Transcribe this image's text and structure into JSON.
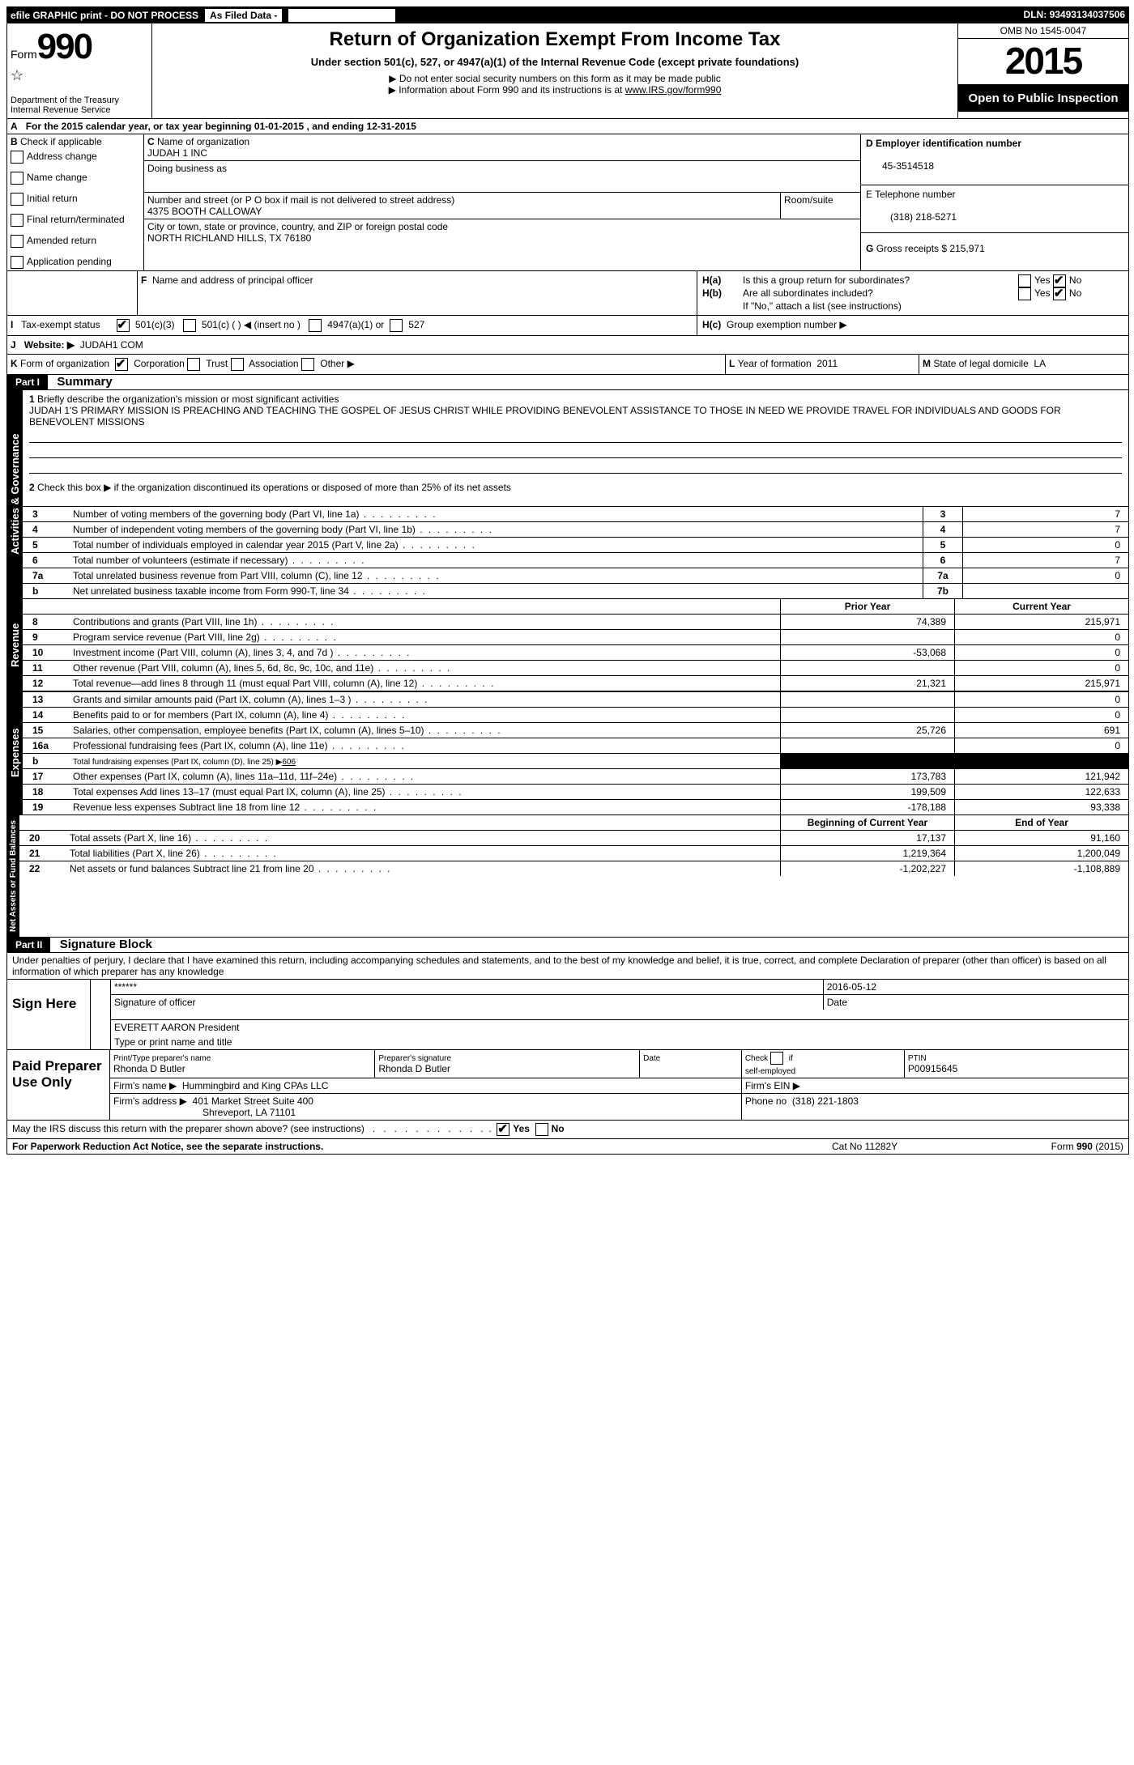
{
  "topbar": {
    "efile": "efile GRAPHIC print - DO NOT PROCESS",
    "asfiled": "As Filed Data -",
    "dln_label": "DLN:",
    "dln": "93493134037506"
  },
  "header": {
    "form_label": "Form",
    "form_no": "990",
    "dept": "Department of the Treasury",
    "irs": "Internal Revenue Service",
    "title": "Return of Organization Exempt From Income Tax",
    "subtitle": "Under section 501(c), 527, or 4947(a)(1) of the Internal Revenue Code (except private foundations)",
    "note1": "▶ Do not enter social security numbers on this form as it may be made public",
    "note2_pre": "▶ Information about Form 990 and its instructions is at ",
    "note2_link": "www.IRS.gov/form990",
    "omb": "OMB No 1545-0047",
    "year": "2015",
    "open": "Open to Public Inspection"
  },
  "line_a": {
    "text_pre": "For the 2015 calendar year, or tax year beginning ",
    "begin": "01-01-2015",
    "mid": " , and ending ",
    "end": "12-31-2015"
  },
  "b": {
    "label": "B",
    "check_label": "Check if applicable",
    "items": [
      "Address change",
      "Name change",
      "Initial return",
      "Final return/terminated",
      "Amended return",
      "Application pending"
    ]
  },
  "c": {
    "label": "C",
    "name_label": "Name of organization",
    "name": "JUDAH 1 INC",
    "dba_label": "Doing business as",
    "addr_label": "Number and street (or P O  box if mail is not delivered to street address)",
    "room_label": "Room/suite",
    "addr": "4375 BOOTH CALLOWAY",
    "city_label": "City or town, state or province, country, and ZIP or foreign postal code",
    "city": "NORTH RICHLAND HILLS, TX  76180"
  },
  "d": {
    "label": "D Employer identification number",
    "val": "45-3514518"
  },
  "e": {
    "label": "E Telephone number",
    "val": "(318) 218-5271"
  },
  "g": {
    "label": "G",
    "text": "Gross receipts $",
    "val": "215,971"
  },
  "f": {
    "label": "F",
    "text": "Name and address of principal officer"
  },
  "h": {
    "a": "Is this a group return for subordinates?",
    "b": "Are all subordinates included?",
    "b_note": "If \"No,\" attach a list  (see instructions)",
    "c": "Group exemption number ▶",
    "ha": "H(a)",
    "hb": "H(b)",
    "hc": "H(c)",
    "yes": "Yes",
    "no": "No"
  },
  "i": {
    "label": "I",
    "text": "Tax-exempt status",
    "opts": [
      "501(c)(3)",
      "501(c) (  ) ◀ (insert no )",
      "4947(a)(1) or",
      "527"
    ]
  },
  "j": {
    "label": "J",
    "text": "Website: ▶",
    "val": "JUDAH1 COM"
  },
  "k": {
    "label": "K",
    "text": "Form of organization",
    "opts": [
      "Corporation",
      "Trust",
      "Association",
      "Other ▶"
    ]
  },
  "l": {
    "label": "L",
    "text": "Year of formation",
    "val": "2011"
  },
  "m": {
    "label": "M",
    "text": "State of legal domicile",
    "val": "LA"
  },
  "part1": {
    "label": "Part I",
    "title": "Summary",
    "q1": "Briefly describe the organization's mission or most significant activities",
    "mission": "JUDAH 1'S PRIMARY MISSION IS PREACHING AND TEACHING THE GOSPEL OF JESUS CHRIST WHILE PROVIDING BENEVOLENT ASSISTANCE TO THOSE IN NEED  WE PROVIDE TRAVEL FOR INDIVIDUALS AND GOODS FOR BENEVOLENT MISSIONS",
    "q2": "Check this box ▶     if the organization discontinued its operations or disposed of more than 25% of its net assets",
    "rows_gov": [
      {
        "n": "3",
        "t": "Number of voting members of the governing body (Part VI, line 1a)",
        "box": "3",
        "v": "7"
      },
      {
        "n": "4",
        "t": "Number of independent voting members of the governing body (Part VI, line 1b)",
        "box": "4",
        "v": "7"
      },
      {
        "n": "5",
        "t": "Total number of individuals employed in calendar year 2015 (Part V, line 2a)",
        "box": "5",
        "v": "0"
      },
      {
        "n": "6",
        "t": "Total number of volunteers (estimate if necessary)",
        "box": "6",
        "v": "7"
      },
      {
        "n": "7a",
        "t": "Total unrelated business revenue from Part VIII, column (C), line 12",
        "box": "7a",
        "v": "0"
      },
      {
        "n": "b",
        "t": "Net unrelated business taxable income from Form 990-T, line 34",
        "box": "7b",
        "v": ""
      }
    ],
    "col_prior": "Prior Year",
    "col_current": "Current Year",
    "revenue": [
      {
        "n": "8",
        "t": "Contributions and grants (Part VIII, line 1h)",
        "p": "74,389",
        "c": "215,971"
      },
      {
        "n": "9",
        "t": "Program service revenue (Part VIII, line 2g)",
        "p": "",
        "c": "0"
      },
      {
        "n": "10",
        "t": "Investment income (Part VIII, column (A), lines 3, 4, and 7d )",
        "p": "-53,068",
        "c": "0"
      },
      {
        "n": "11",
        "t": "Other revenue (Part VIII, column (A), lines 5, 6d, 8c, 9c, 10c, and 11e)",
        "p": "",
        "c": "0"
      },
      {
        "n": "12",
        "t": "Total revenue—add lines 8 through 11 (must equal Part VIII, column (A), line 12)",
        "p": "21,321",
        "c": "215,971"
      }
    ],
    "expenses": [
      {
        "n": "13",
        "t": "Grants and similar amounts paid (Part IX, column (A), lines 1–3 )",
        "p": "",
        "c": "0"
      },
      {
        "n": "14",
        "t": "Benefits paid to or for members (Part IX, column (A), line 4)",
        "p": "",
        "c": "0"
      },
      {
        "n": "15",
        "t": "Salaries, other compensation, employee benefits (Part IX, column (A), lines 5–10)",
        "p": "25,726",
        "c": "691"
      },
      {
        "n": "16a",
        "t": "Professional fundraising fees (Part IX, column (A), line 11e)",
        "p": "",
        "c": "0"
      },
      {
        "n": "b",
        "t": "Total fundraising expenses (Part IX, column (D), line 25) ▶",
        "p": "BLACK",
        "c": "BLACK",
        "extra": "606"
      },
      {
        "n": "17",
        "t": "Other expenses (Part IX, column (A), lines 11a–11d, 11f–24e)",
        "p": "173,783",
        "c": "121,942"
      },
      {
        "n": "18",
        "t": "Total expenses  Add lines 13–17 (must equal Part IX, column (A), line 25)",
        "p": "199,509",
        "c": "122,633"
      },
      {
        "n": "19",
        "t": "Revenue less expenses  Subtract line 18 from line 12",
        "p": "-178,188",
        "c": "93,338"
      }
    ],
    "col_begin": "Beginning of Current Year",
    "col_end": "End of Year",
    "net": [
      {
        "n": "20",
        "t": "Total assets (Part X, line 16)",
        "p": "17,137",
        "c": "91,160"
      },
      {
        "n": "21",
        "t": "Total liabilities (Part X, line 26)",
        "p": "1,219,364",
        "c": "1,200,049"
      },
      {
        "n": "22",
        "t": "Net assets or fund balances  Subtract line 21 from line 20",
        "p": "-1,202,227",
        "c": "-1,108,889"
      }
    ],
    "sections": {
      "gov": "Activities & Governance",
      "rev": "Revenue",
      "exp": "Expenses",
      "net": "Net Assets or Fund Balances"
    }
  },
  "part2": {
    "label": "Part II",
    "title": "Signature Block",
    "perjury": "Under penalties of perjury, I declare that I have examined this return, including accompanying schedules and statements, and to the best of my knowledge and belief, it is true, correct, and complete  Declaration of preparer (other than officer) is based on all information of which preparer has any knowledge",
    "sign_here": "Sign Here",
    "sig_stars": "******",
    "sig_officer": "Signature of officer",
    "date_label": "Date",
    "date": "2016-05-12",
    "officer_name": "EVERETT AARON President",
    "officer_type": "Type or print name and title",
    "paid": "Paid Preparer Use Only",
    "prep_name_label": "Print/Type preparer's name",
    "prep_name": "Rhonda D Butler",
    "prep_sig_label": "Preparer's signature",
    "prep_sig": "Rhonda D Butler",
    "prep_date_label": "Date",
    "self_emp": "Check       if self-employed",
    "ptin_label": "PTIN",
    "ptin": "P00915645",
    "firm_name_label": "Firm's name    ▶",
    "firm_name": "Hummingbird and King CPAs LLC",
    "firm_ein_label": "Firm's EIN ▶",
    "firm_addr_label": "Firm's address ▶",
    "firm_addr1": "401 Market Street Suite 400",
    "firm_addr2": "Shreveport, LA  71101",
    "firm_phone_label": "Phone no",
    "firm_phone": "(318) 221-1803",
    "discuss": "May the IRS discuss this return with the preparer shown above? (see instructions)",
    "yes": "Yes",
    "no": "No"
  },
  "footer": {
    "paperwork": "For Paperwork Reduction Act Notice, see the separate instructions.",
    "cat": "Cat No  11282Y",
    "form": "Form 990 (2015)"
  }
}
